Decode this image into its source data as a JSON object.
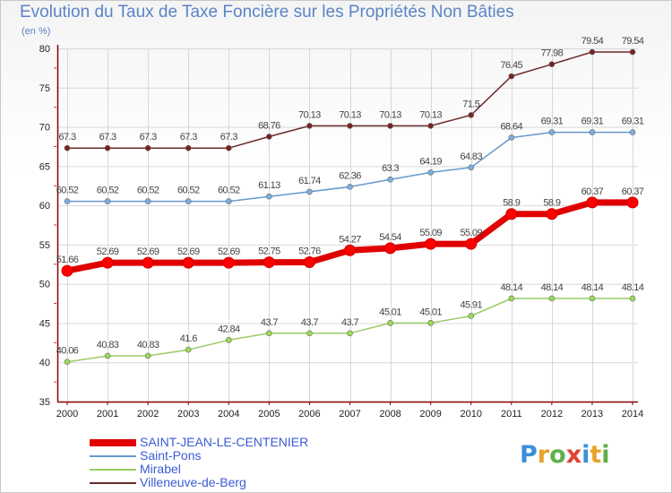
{
  "title": "Evolution du Taux de Taxe Foncière sur les Propriétés Non Bâties",
  "subtitle": "(en %)",
  "logo": "Proxiti",
  "chart_data": {
    "type": "line",
    "title": "Evolution du Taux de Taxe Foncière sur les Propriétés Non Bâties",
    "ylabel": "(en %)",
    "xlabel": "",
    "ylim": [
      35,
      80
    ],
    "yticks": [
      35,
      40,
      45,
      50,
      55,
      60,
      65,
      70,
      75,
      80
    ],
    "categories": [
      "2000",
      "2001",
      "2002",
      "2003",
      "2004",
      "2005",
      "2006",
      "2007",
      "2008",
      "2009",
      "2010",
      "2011",
      "2012",
      "2013",
      "2014"
    ],
    "legend_position": "bottom-left",
    "series": [
      {
        "name": "SAINT-JEAN-LE-CENTENIER",
        "color": "#ff0000",
        "line": "#e00000",
        "values": [
          51.66,
          52.69,
          52.69,
          52.69,
          52.69,
          52.75,
          52.76,
          54.27,
          54.54,
          55.09,
          55.09,
          58.9,
          58.9,
          60.37,
          60.37
        ]
      },
      {
        "name": "Saint-Pons",
        "color": "#7ab0e0",
        "line": "#6699cc",
        "values": [
          60.52,
          60.52,
          60.52,
          60.52,
          60.52,
          61.13,
          61.74,
          62.36,
          63.3,
          64.19,
          64.83,
          68.64,
          69.31,
          69.31,
          69.31
        ]
      },
      {
        "name": "Mirabel",
        "color": "#99dd55",
        "line": "#99cc66",
        "values": [
          40.06,
          40.83,
          40.83,
          41.6,
          42.84,
          43.7,
          43.7,
          43.7,
          45.01,
          45.01,
          45.91,
          48.14,
          48.14,
          48.14,
          48.14
        ]
      },
      {
        "name": "Villeneuve-de-Berg",
        "color": "#7a2222",
        "line": "#6b2a2a",
        "values": [
          67.3,
          67.3,
          67.3,
          67.3,
          67.3,
          68.76,
          70.13,
          70.13,
          70.13,
          70.13,
          71.5,
          76.45,
          77.98,
          79.54,
          79.54
        ]
      }
    ],
    "labels": [
      [
        "51.66",
        "52.69",
        "52.69",
        "52.69",
        "52.69",
        "52.75",
        "52.76",
        "54.27",
        "54.54",
        "55.09",
        "55.09",
        "58.9",
        "58.9",
        "60.37",
        "60.37"
      ],
      [
        "60.52",
        "60.52",
        "60.52",
        "60.52",
        "60.52",
        "61.13",
        "61.74",
        "62.36",
        "63.3",
        "64.19",
        "64.83",
        "68.64",
        "69.31",
        "69.31",
        "69.31"
      ],
      [
        "40.06",
        "40.83",
        "40.83",
        "41.6",
        "42.84",
        "43.7",
        "43.7",
        "43.7",
        "45.01",
        "45.01",
        "45.91",
        "48.14",
        "48.14",
        "48.14",
        "48.14"
      ],
      [
        "67.3",
        "67.3",
        "67.3",
        "67.3",
        "67.3",
        "68.76",
        "70.13",
        "70.13",
        "70.13",
        "70.13",
        "71.5",
        "76.45",
        "77.98",
        "79.54",
        "79.54"
      ]
    ]
  }
}
